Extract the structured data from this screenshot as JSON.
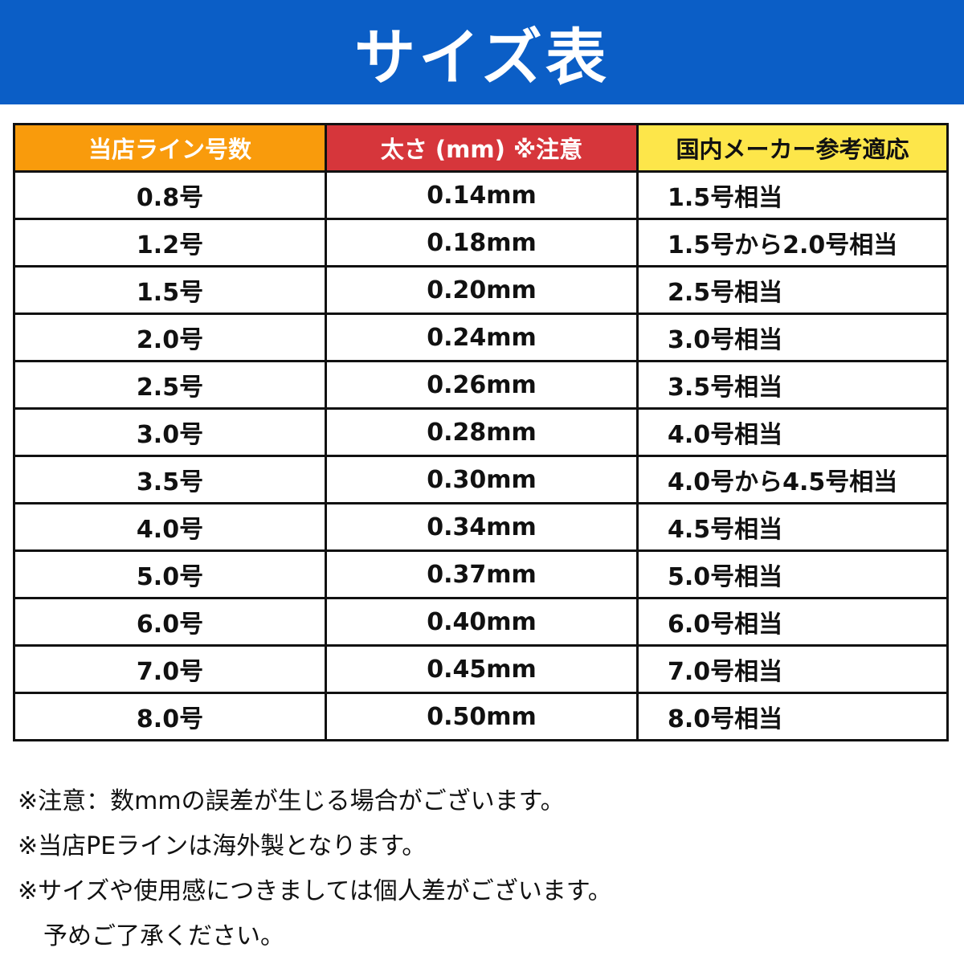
{
  "title": "サイズ表",
  "colors": {
    "banner": "#0b5ec6",
    "header_col1": "#f99b0c",
    "header_col2": "#d6363b",
    "header_col3": "#fde64a"
  },
  "table": {
    "headers": [
      "当店ライン号数",
      "太さ (mm) ※注意",
      "国内メーカー参考適応"
    ],
    "rows": [
      [
        "0.8号",
        "0.14mm",
        "1.5号相当"
      ],
      [
        "1.2号",
        "0.18mm",
        "1.5号から2.0号相当"
      ],
      [
        "1.5号",
        "0.20mm",
        "2.5号相当"
      ],
      [
        "2.0号",
        "0.24mm",
        "3.0号相当"
      ],
      [
        "2.5号",
        "0.26mm",
        "3.5号相当"
      ],
      [
        "3.0号",
        "0.28mm",
        "4.0号相当"
      ],
      [
        "3.5号",
        "0.30mm",
        "4.0号から4.5号相当"
      ],
      [
        "4.0号",
        "0.34mm",
        "4.5号相当"
      ],
      [
        "5.0号",
        "0.37mm",
        "5.0号相当"
      ],
      [
        "6.0号",
        "0.40mm",
        "6.0号相当"
      ],
      [
        "7.0号",
        "0.45mm",
        "7.0号相当"
      ],
      [
        "8.0号",
        "0.50mm",
        "8.0号相当"
      ]
    ]
  },
  "notes": [
    "※注意：数mmの誤差が生じる場合がございます。",
    "※当店PEラインは海外製となります。",
    "※サイズや使用感につきましては個人差がございます。",
    "予めご了承ください。"
  ]
}
